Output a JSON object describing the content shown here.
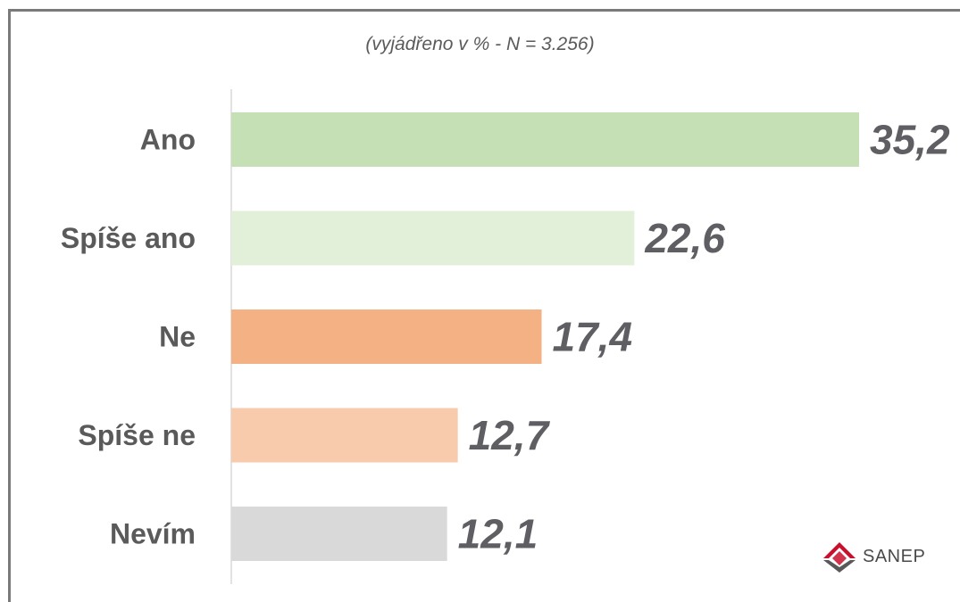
{
  "subtitle": "(vyjádřeno v % - N = 3.256)",
  "logo": {
    "text": "SANEP"
  },
  "chart_data": {
    "type": "bar",
    "orientation": "horizontal",
    "title": "",
    "subtitle": "(vyjádřeno v % - N = 3.256)",
    "categories": [
      "Ano",
      "Spíše ano",
      "Ne",
      "Spíše ne",
      "Nevím"
    ],
    "values": [
      35.2,
      22.6,
      17.4,
      12.7,
      12.1
    ],
    "value_labels": [
      "35,2",
      "22,6",
      "17,4",
      "12,7",
      "12,1"
    ],
    "colors": [
      "#c5e0b4",
      "#e2f0d9",
      "#f4b183",
      "#f8cbad",
      "#d9d9d9"
    ],
    "xlim": [
      0,
      35.2
    ],
    "grid": false,
    "legend": "none"
  }
}
